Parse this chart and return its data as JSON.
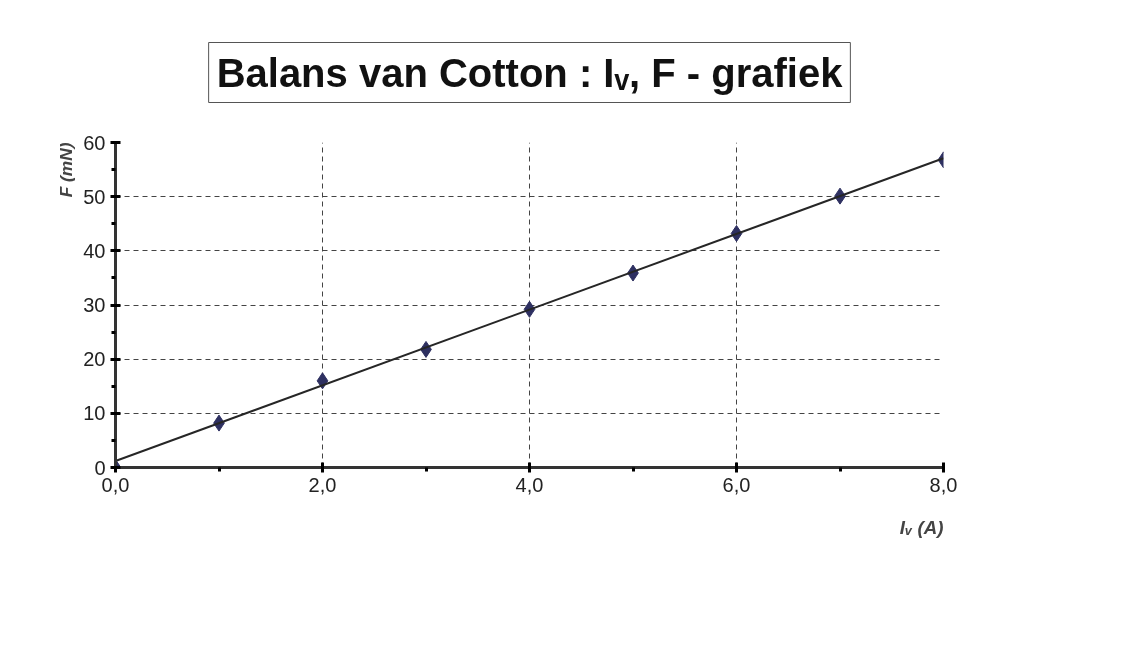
{
  "chart_data": {
    "type": "scatter",
    "title": "Balans van Cotton : Iᵥ, F - grafiek",
    "xlabel": "Iᵥ (A)",
    "ylabel": "F (mN)",
    "x": [
      0,
      1,
      2,
      3,
      4,
      5,
      6,
      7,
      8
    ],
    "series": [
      {
        "color": "#2e3061",
        "marker": "diamond",
        "values": [
          0,
          8.2,
          16.0,
          21.8,
          29.2,
          35.9,
          43.2,
          50.1,
          56.8
        ]
      },
      {
        "type": "line",
        "color": "#262626",
        "x": [
          0,
          8
        ],
        "values": [
          1.2,
          57.1
        ],
        "marker": "none"
      }
    ],
    "xlim": [
      0,
      8
    ],
    "ylim": [
      0,
      60
    ],
    "xticks": [
      {
        "value": 0,
        "label": "0,0"
      },
      {
        "value": 1,
        "label": null
      },
      {
        "value": 2,
        "label": "2,0"
      },
      {
        "value": 3,
        "label": null
      },
      {
        "value": 4,
        "label": "4,0"
      },
      {
        "value": 5,
        "label": null
      },
      {
        "value": 6,
        "label": "6,0"
      },
      {
        "value": 7,
        "label": null
      },
      {
        "value": 8,
        "label": "8,0"
      }
    ],
    "yticks": [
      0,
      {
        "value": 5,
        "label": null
      },
      10,
      {
        "value": 15,
        "label": null
      },
      20,
      {
        "value": 25,
        "label": null
      },
      30,
      {
        "value": 35,
        "label": null
      },
      40,
      {
        "value": 45,
        "label": null
      },
      50,
      {
        "value": 55,
        "label": null
      },
      60
    ],
    "grid": true
  }
}
